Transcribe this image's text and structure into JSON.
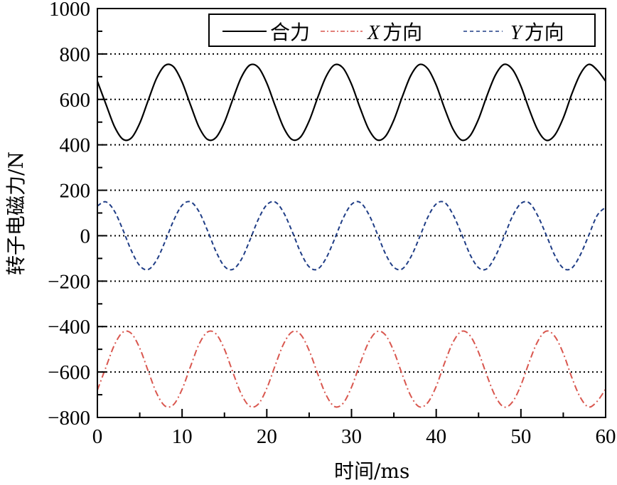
{
  "chart_data": {
    "type": "line",
    "title": "",
    "xlabel": "时间/ms",
    "ylabel": "转子电磁力/N",
    "xlim": [
      0,
      60
    ],
    "ylim": [
      -800,
      1000
    ],
    "xticks": [
      0,
      10,
      20,
      30,
      40,
      50,
      60
    ],
    "yticks": [
      -800,
      -600,
      -400,
      -200,
      0,
      200,
      400,
      600,
      800,
      1000
    ],
    "grid": {
      "horizontal_dotted_at": [
        -600,
        -400,
        -200,
        0,
        200,
        400,
        600,
        800
      ]
    },
    "legend": {
      "position": "upper right",
      "entries": [
        {
          "label": "合力",
          "italic_prefix": "",
          "style": "solid",
          "color": "#000000"
        },
        {
          "label": "方向",
          "italic_prefix": "X",
          "style": "dashdot",
          "color": "#d9574f"
        },
        {
          "label": "方向",
          "italic_prefix": "Y",
          "style": "dashed",
          "color": "#1f3d86"
        }
      ]
    },
    "x": [
      0,
      1,
      2,
      3,
      4,
      5,
      6,
      7,
      8,
      9,
      10,
      11,
      12,
      13,
      14,
      15,
      16,
      17,
      18,
      19,
      20,
      21,
      22,
      23,
      24,
      25,
      26,
      27,
      28,
      29,
      30,
      31,
      32,
      33,
      34,
      35,
      36,
      37,
      38,
      39,
      40,
      41,
      42,
      43,
      44,
      45,
      46,
      47,
      48,
      49,
      50,
      51,
      52,
      53,
      54,
      55,
      56,
      57,
      58,
      59,
      60
    ],
    "series": [
      {
        "name": "合力",
        "color": "#000000",
        "dash": "",
        "values": [
          680,
          580,
          482,
          425,
          430,
          495,
          596,
          694,
          750,
          743,
          676,
          575,
          478,
          424,
          432,
          500,
          602,
          698,
          751,
          741,
          672,
          570,
          475,
          423,
          435,
          505,
          607,
          701,
          752,
          738,
          667,
          564,
          471,
          422,
          437,
          509,
          612,
          705,
          753,
          735,
          663,
          559,
          468,
          421,
          440,
          514,
          617,
          708,
          754,
          732,
          658,
          554,
          464,
          420,
          443,
          518,
          623,
          711,
          754,
          729,
          680
        ]
      },
      {
        "name": "X方向",
        "color": "#d9574f",
        "dash": "9 4 2 4",
        "values": [
          -680,
          -580,
          -482,
          -425,
          -430,
          -495,
          -596,
          -694,
          -750,
          -743,
          -676,
          -575,
          -478,
          -424,
          -432,
          -500,
          -602,
          -698,
          -751,
          -741,
          -672,
          -570,
          -475,
          -423,
          -435,
          -505,
          -607,
          -701,
          -752,
          -738,
          -667,
          -564,
          -471,
          -422,
          -437,
          -509,
          -612,
          -705,
          -753,
          -735,
          -663,
          -559,
          -468,
          -421,
          -440,
          -514,
          -617,
          -708,
          -754,
          -732,
          -658,
          -554,
          -464,
          -420,
          -443,
          -518,
          -623,
          -711,
          -754,
          -729,
          -675
        ]
      },
      {
        "name": "Y方向",
        "color": "#1f3d86",
        "dash": "6 4",
        "values": [
          131,
          149,
          109,
          27,
          -65,
          -132,
          -149,
          -107,
          -25,
          67,
          134,
          149,
          106,
          23,
          -69,
          -135,
          -148,
          -104,
          -20,
          72,
          136,
          148,
          101,
          18,
          -74,
          -137,
          -147,
          -99,
          -15,
          76,
          138,
          147,
          97,
          12,
          -79,
          -139,
          -146,
          -94,
          -10,
          81,
          140,
          146,
          92,
          7,
          -83,
          -141,
          -145,
          -89,
          -5,
          85,
          142,
          144,
          87,
          2,
          -87,
          -143,
          -143,
          -85,
          1,
          89,
          125
        ]
      }
    ]
  }
}
